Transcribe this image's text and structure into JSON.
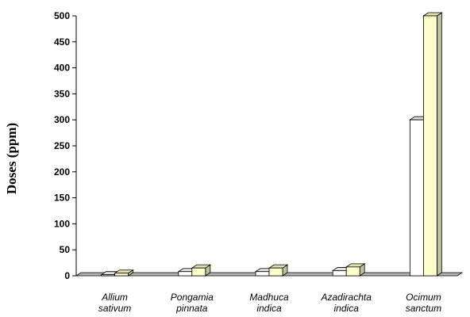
{
  "chart_data": {
    "type": "bar",
    "title": "",
    "xlabel": "",
    "ylabel": "Doses (ppm)",
    "ylim": [
      0,
      500
    ],
    "yticks": [
      "0",
      "50",
      "100",
      "150",
      "200",
      "250",
      "300",
      "350",
      "400",
      "450",
      "500"
    ],
    "categories": [
      [
        "Allium",
        "sativum"
      ],
      [
        "Pongamia",
        "pinnata"
      ],
      [
        "Madhuca",
        "indica"
      ],
      [
        "Azadirachta",
        "indica"
      ],
      [
        "Ocimum",
        "sanctum"
      ]
    ],
    "series": [
      {
        "values": [
          2,
          8,
          8,
          10,
          300
        ],
        "color": "#ffffff"
      },
      {
        "values": [
          5,
          15,
          15,
          17,
          500
        ],
        "color": "#ffffcc"
      }
    ],
    "colors": {
      "floor": "#b3b3b3",
      "axis": "#000000",
      "bar_stroke": "#000000"
    },
    "grid": false,
    "legend": "none",
    "style": "3d-bar"
  }
}
